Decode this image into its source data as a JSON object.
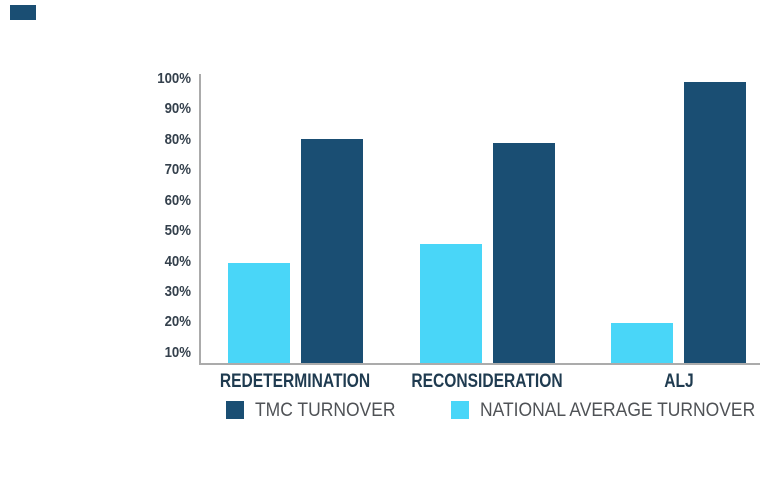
{
  "decor": {
    "corner_mark_color": "#1A4E73"
  },
  "chart_data": {
    "type": "bar",
    "title": "",
    "xlabel": "",
    "ylabel": "",
    "categories": [
      "REDETERMINATION",
      "RECONSIDERATION",
      "ALJ"
    ],
    "series": [
      {
        "name": "TMC TURNOVER",
        "color": "#1A4E73",
        "values": [
          80,
          78.9,
          98.8
        ]
      },
      {
        "name": "NATIONAL AVERAGE TURNOVER",
        "color": "#49D6F8",
        "values": [
          39.5,
          45.5,
          19.7
        ]
      }
    ],
    "bar_order_in_group_left_to_right": [
      "NATIONAL AVERAGE TURNOVER",
      "TMC TURNOVER"
    ],
    "yticks": [
      "10%",
      "20%",
      "30%",
      "40%",
      "50%",
      "60%",
      "70%",
      "80%",
      "90%",
      "100%"
    ],
    "ylim": [
      6.5,
      101.5
    ],
    "grid": false,
    "legend_position": "bottom",
    "colors": {
      "axis": "#ABABAB",
      "tick_label": "#34404C",
      "category_label": "#1F3B50",
      "legend_text": "#4F5256"
    }
  }
}
